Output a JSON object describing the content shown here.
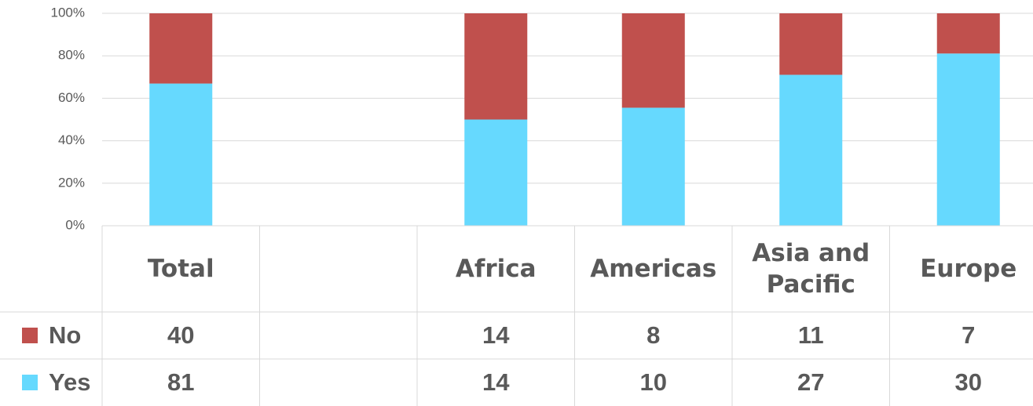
{
  "chart_data": {
    "type": "bar",
    "stacked": true,
    "stack_mode": "percent",
    "categories": [
      "Total",
      null,
      "Africa",
      "Americas",
      "Asia and Pacific",
      "Europe"
    ],
    "series": [
      {
        "name": "No",
        "color": "#c0504d",
        "values": [
          40,
          null,
          14,
          8,
          11,
          7
        ]
      },
      {
        "name": "Yes",
        "color": "#66d9fe",
        "values": [
          81,
          null,
          14,
          10,
          27,
          30
        ]
      }
    ],
    "ylim": [
      0,
      100
    ],
    "yticks": [
      {
        "value": 0,
        "label": "0%"
      },
      {
        "value": 20,
        "label": "20%"
      },
      {
        "value": 40,
        "label": "40%"
      },
      {
        "value": 60,
        "label": "60%"
      },
      {
        "value": 80,
        "label": "80%"
      },
      {
        "value": 100,
        "label": "100%"
      }
    ],
    "grid": true,
    "data_table": true
  }
}
